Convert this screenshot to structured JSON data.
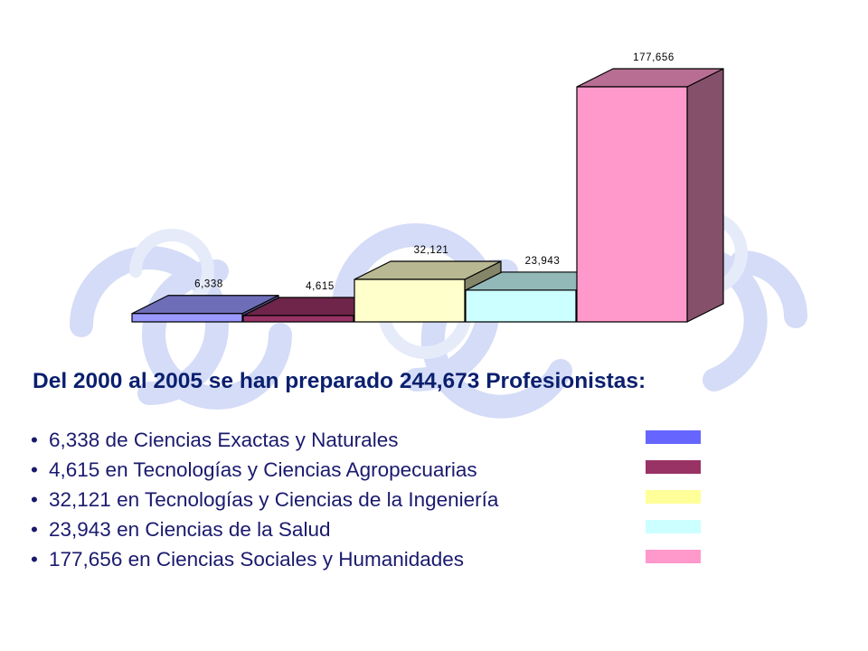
{
  "chart_data": {
    "type": "bar",
    "categories": [
      "Ciencias Exactas y Naturales",
      "Tecnologías y Ciencias Agropecuarias",
      "Tecnologías y Ciencias de la Ingeniería",
      "Ciencias de la Salud",
      "Ciencias Sociales y Humanidades"
    ],
    "values": [
      6338,
      4615,
      32121,
      23943,
      177656
    ],
    "value_labels": [
      "6,338",
      "4,615",
      "32,121",
      "23,943",
      "177,656"
    ],
    "colors": [
      "#9999ff",
      "#993366",
      "#ffffcc",
      "#ccffff",
      "#ff99cc"
    ],
    "style": "3d-column",
    "grid": false,
    "axes_visible": false
  },
  "headline": "Del 2000 al 2005 se han preparado 244,673 Profesionistas:",
  "legend": {
    "bullet": "•",
    "items": [
      {
        "text": "6,338 de Ciencias Exactas y Naturales",
        "color": "#6666ff"
      },
      {
        "text": "4,615 en Tecnologías y Ciencias Agropecuarias",
        "color": "#993366"
      },
      {
        "text": "32,121 en Tecnologías y Ciencias de la Ingeniería",
        "color": "#ffff99"
      },
      {
        "text": "23,943 en Ciencias de la Salud",
        "color": "#ccffff"
      },
      {
        "text": "177,656 en Ciencias Sociales y Humanidades",
        "color": "#ff99cc"
      }
    ]
  }
}
